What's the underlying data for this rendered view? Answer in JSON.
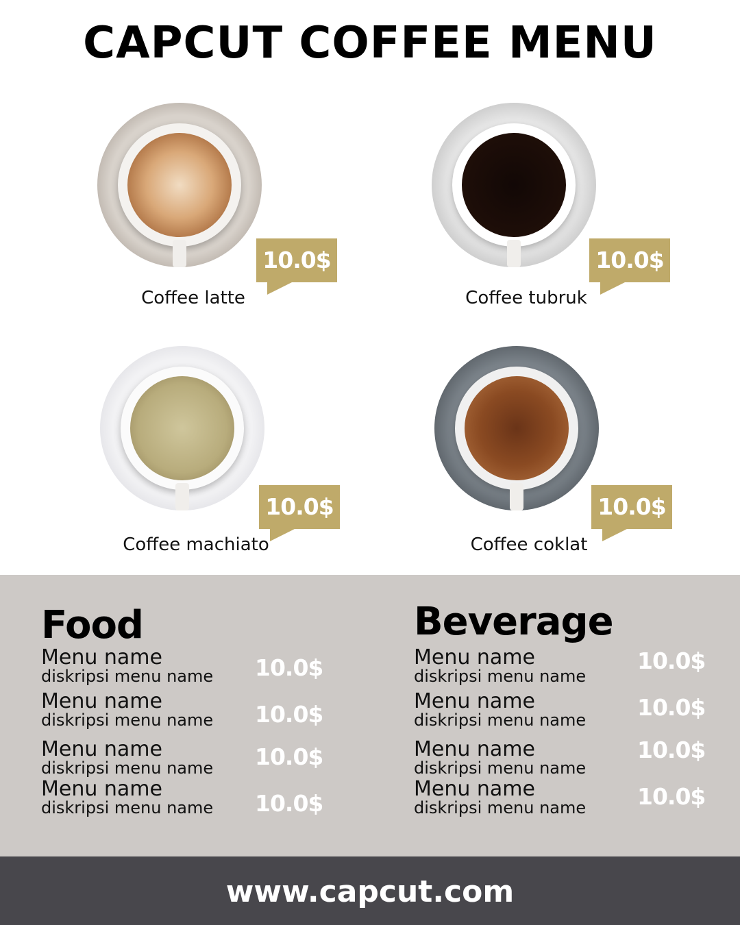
{
  "title": "CAPCUT COFFEE MENU",
  "coffees": [
    {
      "name": "Coffee latte",
      "price": "10.0$"
    },
    {
      "name": "Coffee tubruk",
      "price": "10.0$"
    },
    {
      "name": "Coffee machiato",
      "price": "10.0$"
    },
    {
      "name": "Coffee coklat",
      "price": "10.0$"
    }
  ],
  "food": {
    "title": "Food",
    "items": [
      {
        "name": "Menu name",
        "desc": "diskripsi menu name",
        "price": "10.0$"
      },
      {
        "name": "Menu name",
        "desc": "diskripsi menu name",
        "price": "10.0$"
      },
      {
        "name": "Menu name",
        "desc": "diskripsi menu name",
        "price": "10.0$"
      },
      {
        "name": "Menu name",
        "desc": "diskripsi menu name",
        "price": "10.0$"
      }
    ]
  },
  "beverage": {
    "title": "Beverage",
    "items": [
      {
        "name": "Menu name",
        "desc": "diskripsi menu name",
        "price": "10.0$"
      },
      {
        "name": "Menu name",
        "desc": "diskripsi menu name",
        "price": "10.0$"
      },
      {
        "name": "Menu name",
        "desc": "diskripsi menu name",
        "price": "10.0$"
      },
      {
        "name": "Menu name",
        "desc": "diskripsi menu name",
        "price": "10.0$"
      }
    ]
  },
  "footer": {
    "url": "www.capcut.com"
  },
  "colors": {
    "accent": "#bfaa6a",
    "band": "#cdc9c6",
    "footer": "#48474c"
  }
}
